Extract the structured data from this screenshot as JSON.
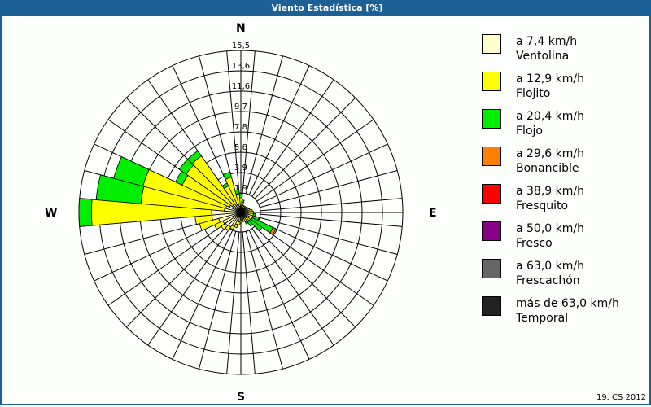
{
  "window": {
    "title": "Viento Estadística [%]"
  },
  "compass": {
    "n": "N",
    "e": "E",
    "s": "S",
    "w": "W"
  },
  "footer": {
    "text": "19. CS 2012"
  },
  "legend": {
    "items": [
      {
        "range": "a 7,4 km/h",
        "name": "Ventolina",
        "color": "#ffffcc"
      },
      {
        "range": "a 12,9 km/h",
        "name": "Flojito",
        "color": "#ffff00"
      },
      {
        "range": "a 20,4 km/h",
        "name": "Flojo",
        "color": "#00ee00"
      },
      {
        "range": "a 29,6 km/h",
        "name": "Bonancible",
        "color": "#ff8000"
      },
      {
        "range": "a 38,9 km/h",
        "name": "Fresquito",
        "color": "#ff0000"
      },
      {
        "range": "a 50,0 km/h",
        "name": "Fresco",
        "color": "#880088"
      },
      {
        "range": "a 63,0 km/h",
        "name": "Frescachón",
        "color": "#666666"
      },
      {
        "range": "más de 63,0 km/h",
        "name": "Temporal",
        "color": "#222222"
      }
    ]
  },
  "chart_data": {
    "type": "wind_rose",
    "title": "Viento Estadística [%]",
    "unit": "%",
    "radial_ticks": [
      1.9,
      3.9,
      5.8,
      7.8,
      9.7,
      11.6,
      13.6,
      15.5
    ],
    "rmax": 15.5,
    "sector_width_deg": 10,
    "direction_labels": [
      "N",
      "E",
      "S",
      "W"
    ],
    "series_names": [
      "Ventolina",
      "Flojito",
      "Flojo",
      "Bonancible",
      "Fresquito",
      "Fresco",
      "Frescachón",
      "Temporal"
    ],
    "series_colors": [
      "#ffffcc",
      "#ffff00",
      "#00ee00",
      "#ff8000",
      "#ff0000",
      "#880088",
      "#666666",
      "#222222"
    ],
    "sectors": [
      {
        "dir": 0,
        "values": [
          0.6,
          0.8,
          0.4,
          0,
          0,
          0,
          0,
          0
        ]
      },
      {
        "dir": 10,
        "values": [
          0.6,
          0.4,
          0.2,
          0,
          0,
          0,
          0,
          0
        ]
      },
      {
        "dir": 20,
        "values": [
          0.5,
          0.2,
          0,
          0,
          0,
          0,
          0,
          0
        ]
      },
      {
        "dir": 30,
        "values": [
          0.5,
          0.2,
          0,
          0,
          0,
          0,
          0,
          0
        ]
      },
      {
        "dir": 40,
        "values": [
          0.5,
          0.2,
          0,
          0,
          0,
          0,
          0,
          0
        ]
      },
      {
        "dir": 50,
        "values": [
          0.5,
          0.2,
          0,
          0,
          0,
          0,
          0,
          0
        ]
      },
      {
        "dir": 60,
        "values": [
          0.5,
          0.3,
          0,
          0,
          0,
          0,
          0,
          0
        ]
      },
      {
        "dir": 70,
        "values": [
          0.6,
          0.3,
          0,
          0,
          0,
          0,
          0,
          0
        ]
      },
      {
        "dir": 80,
        "values": [
          0.7,
          0.4,
          0,
          0,
          0,
          0,
          0,
          0
        ]
      },
      {
        "dir": 90,
        "values": [
          0.7,
          0.5,
          0,
          0,
          0,
          0,
          0,
          0
        ]
      },
      {
        "dir": 100,
        "values": [
          0.7,
          0.5,
          0.2,
          0,
          0,
          0,
          0,
          0
        ]
      },
      {
        "dir": 110,
        "values": [
          0.6,
          0.6,
          0.6,
          0,
          0,
          0,
          0,
          0
        ]
      },
      {
        "dir": 120,
        "values": [
          0.6,
          0.6,
          2.2,
          0.3,
          0,
          0,
          0,
          0
        ]
      },
      {
        "dir": 130,
        "values": [
          0.6,
          0.5,
          1.4,
          0,
          0,
          0,
          0,
          0
        ]
      },
      {
        "dir": 140,
        "values": [
          0.6,
          0.5,
          0.5,
          0,
          0,
          0,
          0,
          0
        ]
      },
      {
        "dir": 150,
        "values": [
          0.6,
          0.4,
          0.2,
          0,
          0,
          0,
          0,
          0
        ]
      },
      {
        "dir": 160,
        "values": [
          0.6,
          0.3,
          0,
          0,
          0,
          0,
          0,
          0
        ]
      },
      {
        "dir": 170,
        "values": [
          0.6,
          0.3,
          0,
          0,
          0,
          0,
          0,
          0
        ]
      },
      {
        "dir": 180,
        "values": [
          0.7,
          0.3,
          0,
          0,
          0,
          0,
          0,
          0
        ]
      },
      {
        "dir": 190,
        "values": [
          0.9,
          0.3,
          0,
          0,
          0,
          0,
          0,
          0
        ]
      },
      {
        "dir": 200,
        "values": [
          1.2,
          0.3,
          0,
          0,
          0,
          0,
          0,
          0
        ]
      },
      {
        "dir": 210,
        "values": [
          1.5,
          0.3,
          0,
          0,
          0,
          0,
          0,
          0
        ]
      },
      {
        "dir": 220,
        "values": [
          1.7,
          0.4,
          0,
          0,
          0,
          0,
          0,
          0
        ]
      },
      {
        "dir": 230,
        "values": [
          1.8,
          0.5,
          0,
          0,
          0,
          0,
          0,
          0
        ]
      },
      {
        "dir": 240,
        "values": [
          1.9,
          0.9,
          0,
          0,
          0,
          0,
          0,
          0
        ]
      },
      {
        "dir": 250,
        "values": [
          2.2,
          1.9,
          0,
          0,
          0,
          0,
          0,
          0
        ]
      },
      {
        "dir": 260,
        "values": [
          2.8,
          1.6,
          0,
          0,
          0,
          0,
          0,
          0
        ]
      },
      {
        "dir": 270,
        "values": [
          2.8,
          11.5,
          1.2,
          0,
          0,
          0,
          0,
          0
        ]
      },
      {
        "dir": 280,
        "values": [
          1.6,
          8.0,
          4.3,
          0,
          0,
          0,
          0,
          0
        ]
      },
      {
        "dir": 290,
        "values": [
          1.5,
          8.2,
          2.9,
          0,
          0,
          0,
          0,
          0
        ]
      },
      {
        "dir": 300,
        "values": [
          1.2,
          5.0,
          0.7,
          0,
          0,
          0,
          0,
          0
        ]
      },
      {
        "dir": 310,
        "values": [
          1.0,
          5.4,
          0.8,
          0,
          0,
          0,
          0,
          0
        ]
      },
      {
        "dir": 320,
        "values": [
          1.0,
          5.6,
          0.6,
          0,
          0,
          0,
          0,
          0
        ]
      },
      {
        "dir": 330,
        "values": [
          0.8,
          2.0,
          0.3,
          0,
          0,
          0,
          0,
          0
        ]
      },
      {
        "dir": 340,
        "values": [
          0.8,
          2.7,
          0.5,
          0,
          0,
          0,
          0,
          0
        ]
      },
      {
        "dir": 350,
        "values": [
          0.6,
          1.2,
          0.4,
          0,
          0,
          0,
          0,
          0
        ]
      }
    ]
  }
}
